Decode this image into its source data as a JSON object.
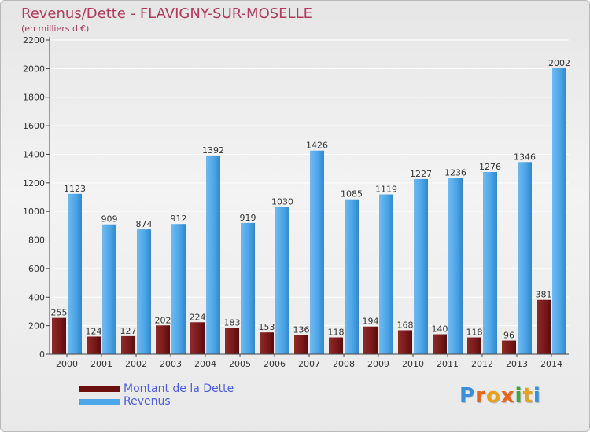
{
  "title": "Revenus/Dette - FLAVIGNY-SUR-MOSELLE",
  "subtitle": "(en milliers d'€)",
  "logo_text": "Proxiti",
  "colors": {
    "title": "#b23a5a",
    "debt": "#7a1a1a",
    "revenue": "#4da6e8",
    "legend_text": "#4b5de0"
  },
  "legend": [
    {
      "label": "Montant de la Dette",
      "color": "#6b0f0f"
    },
    {
      "label": "Revenus",
      "color": "#4da6e8"
    }
  ],
  "chart_data": {
    "type": "bar",
    "title": "Revenus/Dette - FLAVIGNY-SUR-MOSELLE",
    "subtitle": "(en milliers d'€)",
    "xlabel": "",
    "ylabel": "",
    "ylim": [
      0,
      2200
    ],
    "yticks": [
      0,
      200,
      400,
      600,
      800,
      1000,
      1200,
      1400,
      1600,
      1800,
      2000,
      2200
    ],
    "grid": true,
    "legend_position": "bottom-left",
    "categories": [
      "2000",
      "2001",
      "2002",
      "2003",
      "2004",
      "2005",
      "2006",
      "2007",
      "2008",
      "2009",
      "2010",
      "2011",
      "2012",
      "2013",
      "2014"
    ],
    "series": [
      {
        "name": "Montant de la Dette",
        "values": [
          255,
          124,
          127,
          202,
          224,
          183,
          153,
          136,
          118,
          194,
          168,
          140,
          118,
          96,
          381
        ]
      },
      {
        "name": "Revenus",
        "values": [
          1123,
          909,
          874,
          912,
          1392,
          919,
          1030,
          1426,
          1085,
          1119,
          1227,
          1236,
          1276,
          1346,
          2002
        ]
      }
    ]
  }
}
